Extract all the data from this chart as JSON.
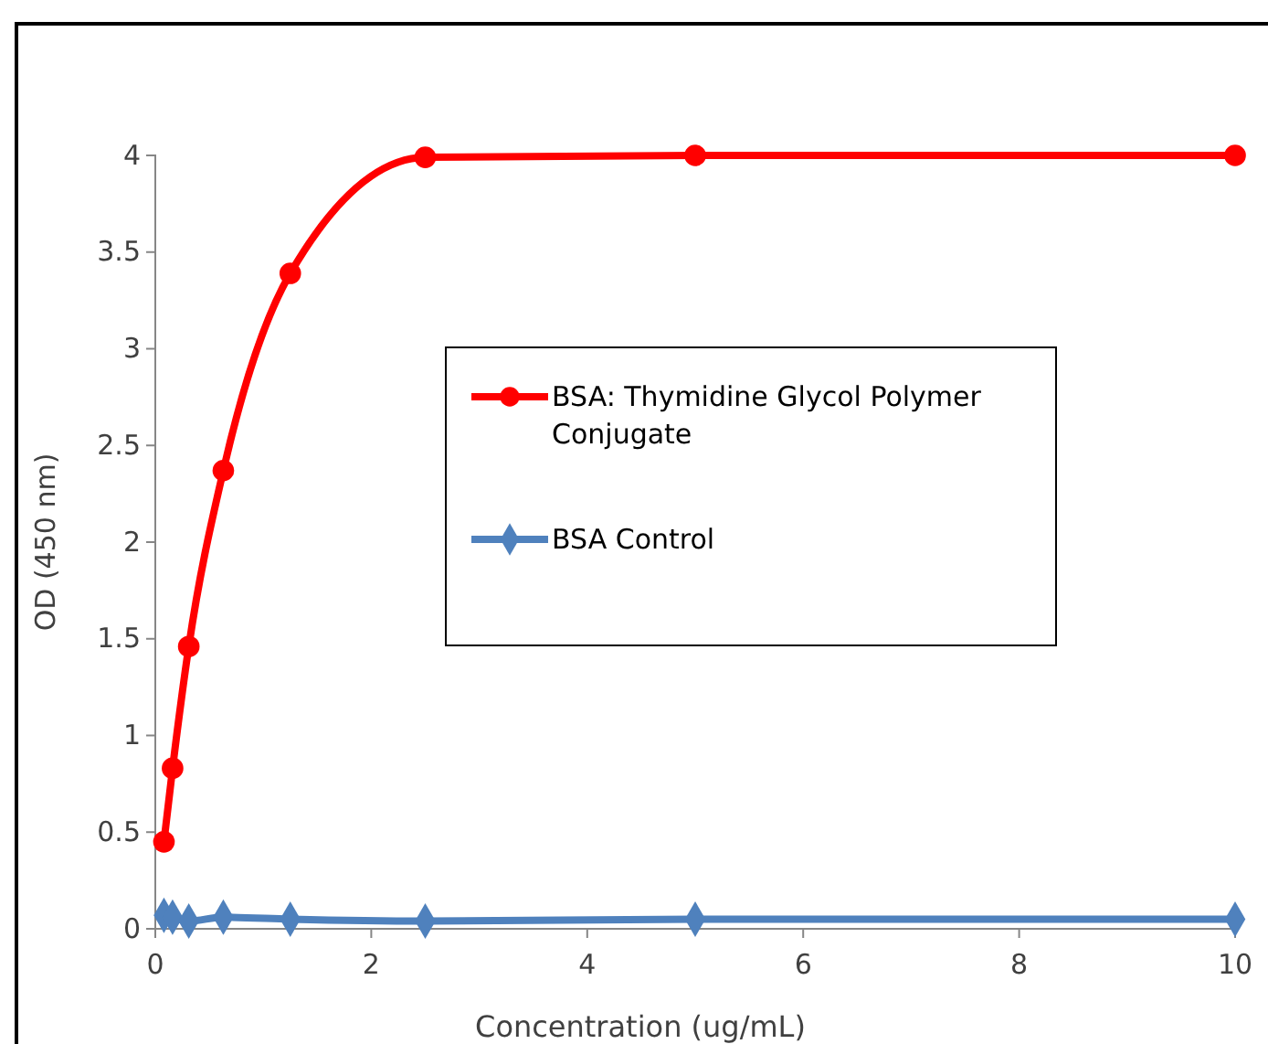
{
  "chart_data": {
    "type": "line",
    "xlabel": "Concentration (ug/mL)",
    "ylabel": "OD (450 nm)",
    "x": [
      0.08,
      0.16,
      0.31,
      0.63,
      1.25,
      2.5,
      5,
      10
    ],
    "series": [
      {
        "name": "BSA: Thymidine Glycol Polymer Conjugate",
        "color": "#ff0000",
        "marker": "circle",
        "values": [
          0.45,
          0.83,
          1.46,
          2.37,
          3.39,
          3.99,
          4,
          4
        ]
      },
      {
        "name": "BSA Control",
        "color": "#4f81bd",
        "marker": "diamond",
        "values": [
          0.07,
          0.06,
          0.04,
          0.06,
          0.05,
          0.04,
          0.05,
          0.05
        ]
      }
    ],
    "xlim": [
      0,
      10
    ],
    "xticks": [
      0,
      2,
      4,
      6,
      8,
      10
    ],
    "ylim": [
      0,
      4
    ],
    "yticks": [
      0,
      0.5,
      1,
      1.5,
      2,
      2.5,
      3,
      3.5,
      4
    ],
    "grid": false,
    "legend": "right"
  }
}
